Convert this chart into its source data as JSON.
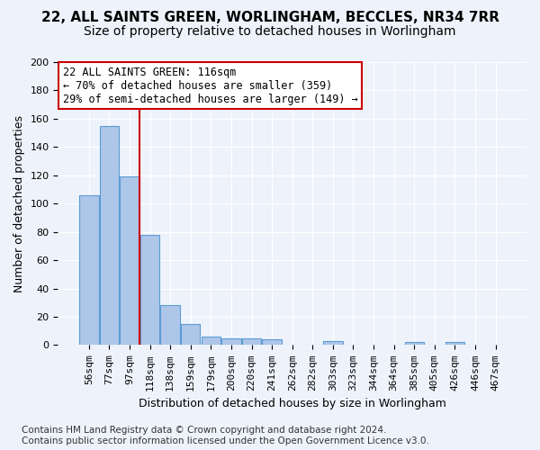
{
  "title_line1": "22, ALL SAINTS GREEN, WORLINGHAM, BECCLES, NR34 7RR",
  "title_line2": "Size of property relative to detached houses in Worlingham",
  "xlabel": "Distribution of detached houses by size in Worlingham",
  "ylabel": "Number of detached properties",
  "bar_color": "#aec6e8",
  "bar_edge_color": "#5b9bd5",
  "background_color": "#eef3fb",
  "grid_color": "#ffffff",
  "bins": [
    "56sqm",
    "77sqm",
    "97sqm",
    "118sqm",
    "138sqm",
    "159sqm",
    "179sqm",
    "200sqm",
    "220sqm",
    "241sqm",
    "262sqm",
    "282sqm",
    "303sqm",
    "323sqm",
    "344sqm",
    "364sqm",
    "385sqm",
    "405sqm",
    "426sqm",
    "446sqm",
    "467sqm"
  ],
  "values": [
    106,
    155,
    119,
    78,
    28,
    15,
    6,
    5,
    5,
    4,
    0,
    0,
    3,
    0,
    0,
    0,
    2,
    0,
    2,
    0,
    0
  ],
  "ylim": [
    0,
    200
  ],
  "yticks": [
    0,
    20,
    40,
    60,
    80,
    100,
    120,
    140,
    160,
    180,
    200
  ],
  "vline_x": 2.5,
  "vline_color": "#cc0000",
  "annotation_text": "22 ALL SAINTS GREEN: 116sqm\n← 70% of detached houses are smaller (359)\n29% of semi-detached houses are larger (149) →",
  "annotation_box_color": "#ffffff",
  "annotation_box_edge": "#cc0000",
  "footnote": "Contains HM Land Registry data © Crown copyright and database right 2024.\nContains public sector information licensed under the Open Government Licence v3.0.",
  "title_fontsize": 11,
  "subtitle_fontsize": 10,
  "tick_fontsize": 8,
  "ylabel_fontsize": 9,
  "xlabel_fontsize": 9,
  "annotation_fontsize": 8.5,
  "footnote_fontsize": 7.5
}
